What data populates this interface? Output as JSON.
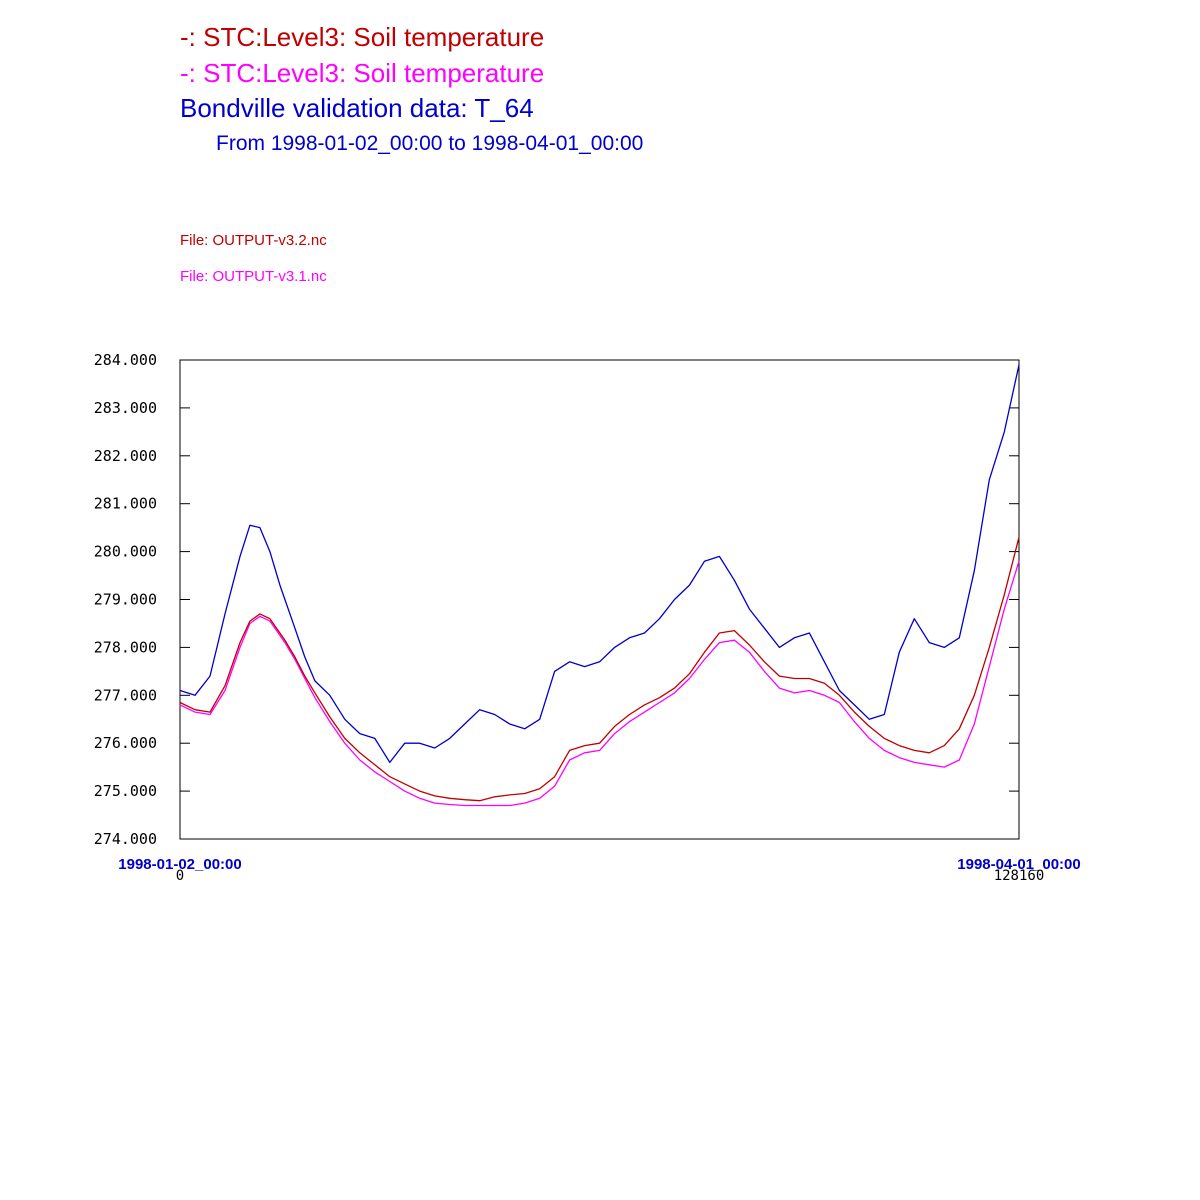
{
  "header": {
    "line1": "-:  STC:Level3: Soil temperature",
    "line2": "-:  STC:Level3: Soil temperature",
    "line3": "Bondville validation data:  T_64",
    "line4": "From 1998-01-02_00:00 to 1998-04-01_00:00"
  },
  "files": {
    "file1": "File: OUTPUT-v3.2.nc",
    "file2": "File: OUTPUT-v3.1.nc"
  },
  "colors": {
    "series_v32": "#c00000",
    "series_v31": "#ff00ff",
    "validation": "#0000cc",
    "axis": "#000000",
    "date_label": "#0000cc"
  },
  "chart_data": {
    "type": "line",
    "title": "",
    "xlabel": "",
    "ylabel": "",
    "xlim": [
      0,
      128160
    ],
    "ylim": [
      274.0,
      284.0
    ],
    "y_ticks": [
      "274.000",
      "275.000",
      "276.000",
      "277.000",
      "278.000",
      "279.000",
      "280.000",
      "281.000",
      "282.000",
      "283.000",
      "284.000"
    ],
    "x_tick_numbers": [
      "0",
      "128160"
    ],
    "x_tick_dates": [
      "1998-01-02_00:00",
      "1998-04-01_00:00"
    ],
    "grid": false,
    "series": [
      {
        "key": "validation",
        "x": [
          0,
          2290,
          4580,
          6870,
          9160,
          10680,
          12210,
          13730,
          15260,
          16020,
          17550,
          19070,
          20600,
          22890,
          25180,
          27470,
          29760,
          32040,
          34330,
          36620,
          38910,
          41200,
          43490,
          45780,
          48070,
          50360,
          52650,
          54940,
          57220,
          59510,
          61800,
          64090,
          66380,
          68670,
          70960,
          73250,
          75540,
          77830,
          80120,
          82400,
          84690,
          86980,
          89270,
          91560,
          93850,
          96140,
          98430,
          100720,
          103010,
          105300,
          107590,
          109880,
          112170,
          114460,
          116750,
          119040,
          121330,
          123620,
          125910,
          128160
        ],
        "y": [
          277.1,
          277.0,
          277.4,
          278.7,
          279.9,
          280.55,
          280.5,
          280.0,
          279.3,
          279.0,
          278.4,
          277.8,
          277.3,
          277.0,
          276.5,
          276.2,
          276.1,
          275.6,
          276.0,
          276.0,
          275.9,
          276.1,
          276.4,
          276.7,
          276.6,
          276.4,
          276.3,
          276.5,
          277.5,
          277.7,
          277.6,
          277.7,
          278.0,
          278.2,
          278.3,
          278.6,
          279.0,
          279.3,
          279.8,
          279.9,
          279.4,
          278.8,
          278.4,
          278.0,
          278.2,
          278.3,
          277.7,
          277.1,
          276.8,
          276.5,
          276.6,
          277.9,
          278.6,
          278.1,
          278.0,
          278.2,
          279.6,
          281.5,
          282.5,
          283.9
        ]
      },
      {
        "key": "v32",
        "x": [
          0,
          2290,
          4580,
          6870,
          9160,
          10680,
          12210,
          13730,
          15260,
          16020,
          17550,
          19070,
          20600,
          22890,
          25180,
          27470,
          29760,
          32040,
          34330,
          36620,
          38910,
          41200,
          43490,
          45780,
          48070,
          50360,
          52650,
          54940,
          57220,
          59510,
          61800,
          64090,
          66380,
          68670,
          70960,
          73250,
          75540,
          77830,
          80120,
          82400,
          84690,
          86980,
          89270,
          91560,
          93850,
          96140,
          98430,
          100720,
          103010,
          105300,
          107590,
          109880,
          112170,
          114460,
          116750,
          119040,
          121330,
          123620,
          125910,
          128160
        ],
        "y": [
          276.85,
          276.7,
          276.65,
          277.2,
          278.1,
          278.55,
          278.7,
          278.6,
          278.3,
          278.15,
          277.8,
          277.4,
          277.05,
          276.55,
          276.1,
          275.8,
          275.55,
          275.3,
          275.15,
          275.0,
          274.9,
          274.85,
          274.82,
          274.8,
          274.88,
          274.92,
          274.95,
          275.05,
          275.3,
          275.85,
          275.95,
          276.0,
          276.35,
          276.6,
          276.8,
          276.95,
          277.15,
          277.45,
          277.9,
          278.3,
          278.35,
          278.05,
          277.7,
          277.4,
          277.35,
          277.35,
          277.25,
          277.0,
          276.65,
          276.35,
          276.1,
          275.95,
          275.85,
          275.8,
          275.95,
          276.3,
          277.0,
          278.0,
          279.1,
          280.3
        ]
      },
      {
        "key": "v31",
        "x": [
          0,
          2290,
          4580,
          6870,
          9160,
          10680,
          12210,
          13730,
          15260,
          16020,
          17550,
          19070,
          20600,
          22890,
          25180,
          27470,
          29760,
          32040,
          34330,
          36620,
          38910,
          41200,
          43490,
          45780,
          48070,
          50360,
          52650,
          54940,
          57220,
          59510,
          61800,
          64090,
          66380,
          68670,
          70960,
          73250,
          75540,
          77830,
          80120,
          82400,
          84690,
          86980,
          89270,
          91560,
          93850,
          96140,
          98430,
          100720,
          103010,
          105300,
          107590,
          109880,
          112170,
          114460,
          116750,
          119040,
          121330,
          123620,
          125910,
          128160
        ],
        "y": [
          276.8,
          276.65,
          276.6,
          277.1,
          278.0,
          278.5,
          278.65,
          278.55,
          278.25,
          278.1,
          277.75,
          277.35,
          276.95,
          276.45,
          276.0,
          275.65,
          275.4,
          275.2,
          275.0,
          274.85,
          274.75,
          274.72,
          274.7,
          274.7,
          274.7,
          274.7,
          274.75,
          274.85,
          275.1,
          275.65,
          275.8,
          275.85,
          276.2,
          276.45,
          276.65,
          276.85,
          277.05,
          277.35,
          277.75,
          278.1,
          278.15,
          277.9,
          277.5,
          277.15,
          277.05,
          277.1,
          277.0,
          276.85,
          276.45,
          276.1,
          275.85,
          275.7,
          275.6,
          275.55,
          275.5,
          275.65,
          276.4,
          277.6,
          278.8,
          279.8
        ]
      }
    ]
  }
}
